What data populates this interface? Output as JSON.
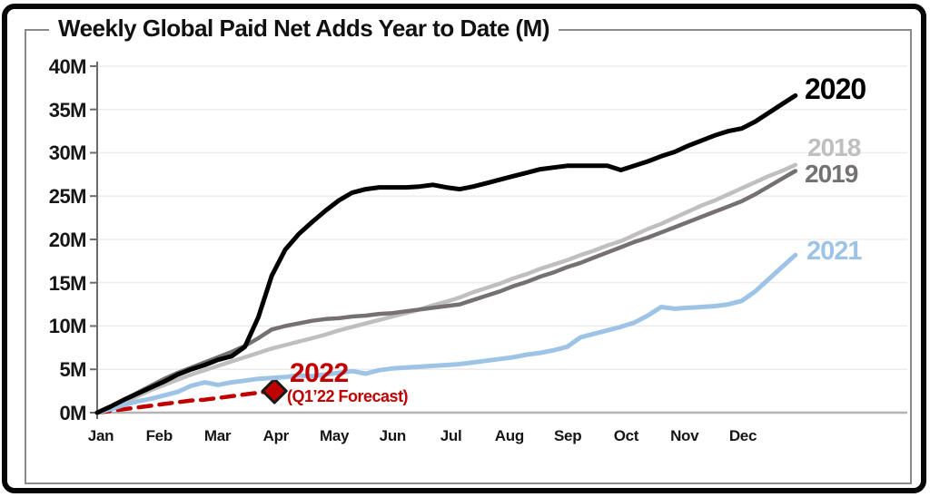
{
  "title": "Weekly Global Paid Net Adds Year to Date (M)",
  "chart_data": {
    "type": "line",
    "title": "Weekly Global Paid Net Adds Year to Date (M)",
    "x_unit": "week_of_year",
    "x_range": [
      0,
      52
    ],
    "ylim": [
      0,
      40
    ],
    "grid": "horizontal-light",
    "legend_position": "line-end-labels-right",
    "x_tick_labels": [
      "Jan",
      "Feb",
      "Mar",
      "Apr",
      "May",
      "Jun",
      "Jul",
      "Aug",
      "Sep",
      "Oct",
      "Nov",
      "Dec"
    ],
    "y_ticks": [
      {
        "value": 0,
        "label": "0M"
      },
      {
        "value": 5,
        "label": "5M"
      },
      {
        "value": 10,
        "label": "10M"
      },
      {
        "value": 15,
        "label": "15M"
      },
      {
        "value": 20,
        "label": "20M"
      },
      {
        "value": 25,
        "label": "25M"
      },
      {
        "value": 30,
        "label": "30M"
      },
      {
        "value": 35,
        "label": "35M"
      },
      {
        "value": 40,
        "label": "40M"
      }
    ],
    "series": [
      {
        "name": "2020",
        "color": "#000000",
        "label_color": "#000000",
        "line_style": "solid",
        "line_width": 5,
        "weekly_values": [
          0,
          0.7,
          1.5,
          2.2,
          2.9,
          3.6,
          4.4,
          5.0,
          5.5,
          6.1,
          6.5,
          7.6,
          11.0,
          15.8,
          18.8,
          20.6,
          22.0,
          23.3,
          24.5,
          25.4,
          25.8,
          26.0,
          26.0,
          26.0,
          26.1,
          26.3,
          26.0,
          25.8,
          26.1,
          26.5,
          26.9,
          27.3,
          27.7,
          28.1,
          28.3,
          28.5,
          28.5,
          28.5,
          28.5,
          28.0,
          28.5,
          29.0,
          29.6,
          30.1,
          30.8,
          31.4,
          32.0,
          32.5,
          32.8,
          33.6,
          34.6,
          35.6,
          36.6
        ]
      },
      {
        "name": "2018",
        "color": "#bfbfbf",
        "label_color": "#bfbfbf",
        "line_style": "solid",
        "line_width": 4.5,
        "weekly_values": [
          0,
          0.6,
          1.2,
          1.9,
          2.6,
          3.2,
          3.8,
          4.4,
          4.9,
          5.4,
          5.9,
          6.4,
          6.9,
          7.4,
          7.8,
          8.2,
          8.6,
          9.0,
          9.5,
          9.9,
          10.3,
          10.7,
          11.1,
          11.5,
          11.9,
          12.4,
          12.8,
          13.3,
          13.9,
          14.4,
          14.9,
          15.5,
          16.0,
          16.6,
          17.1,
          17.6,
          18.2,
          18.7,
          19.3,
          19.8,
          20.5,
          21.2,
          21.8,
          22.5,
          23.2,
          23.9,
          24.5,
          25.2,
          25.9,
          26.6,
          27.3,
          27.9,
          28.6
        ]
      },
      {
        "name": "2019",
        "color": "#757171",
        "label_color": "#757171",
        "line_style": "solid",
        "line_width": 4.5,
        "weekly_values": [
          0,
          0.7,
          1.5,
          2.3,
          3.1,
          3.9,
          4.6,
          5.2,
          5.8,
          6.4,
          7.0,
          7.7,
          8.6,
          9.6,
          10.0,
          10.3,
          10.6,
          10.8,
          10.9,
          11.1,
          11.2,
          11.4,
          11.5,
          11.7,
          11.9,
          12.1,
          12.3,
          12.5,
          13.0,
          13.5,
          14.0,
          14.6,
          15.1,
          15.7,
          16.2,
          16.8,
          17.3,
          17.9,
          18.5,
          19.1,
          19.7,
          20.2,
          20.8,
          21.4,
          22.0,
          22.6,
          23.2,
          23.8,
          24.4,
          25.2,
          26.1,
          27.0,
          27.9
        ]
      },
      {
        "name": "2021",
        "color": "#9dc3e6",
        "label_color": "#9dc3e6",
        "line_style": "solid",
        "line_width": 5,
        "weekly_values": [
          0,
          0.4,
          0.9,
          1.3,
          1.6,
          2.0,
          2.4,
          3.1,
          3.5,
          3.2,
          3.5,
          3.7,
          3.9,
          4.0,
          4.1,
          4.3,
          4.2,
          4.4,
          4.6,
          4.8,
          4.5,
          4.9,
          5.1,
          5.2,
          5.3,
          5.4,
          5.5,
          5.6,
          5.8,
          6.0,
          6.2,
          6.4,
          6.7,
          6.9,
          7.2,
          7.6,
          8.7,
          9.1,
          9.5,
          9.9,
          10.4,
          11.2,
          12.2,
          12.0,
          12.1,
          12.2,
          12.3,
          12.5,
          12.9,
          14.0,
          15.4,
          16.8,
          18.2
        ]
      },
      {
        "name": "2022",
        "color": "#c00000",
        "label_color": "#c00000",
        "line_style": "dashed",
        "line_width": 4.5,
        "annotation": "(Q1’22 Forecast)",
        "marker": {
          "shape": "diamond",
          "fill": "#c00000",
          "stroke": "#1a1a1a",
          "week": 13,
          "value": 2.5
        },
        "weekly_values": [
          0,
          0.2,
          0.4,
          0.6,
          0.8,
          1.0,
          1.2,
          1.4,
          1.5,
          1.7,
          1.9,
          2.1,
          2.3,
          2.5
        ]
      }
    ]
  }
}
